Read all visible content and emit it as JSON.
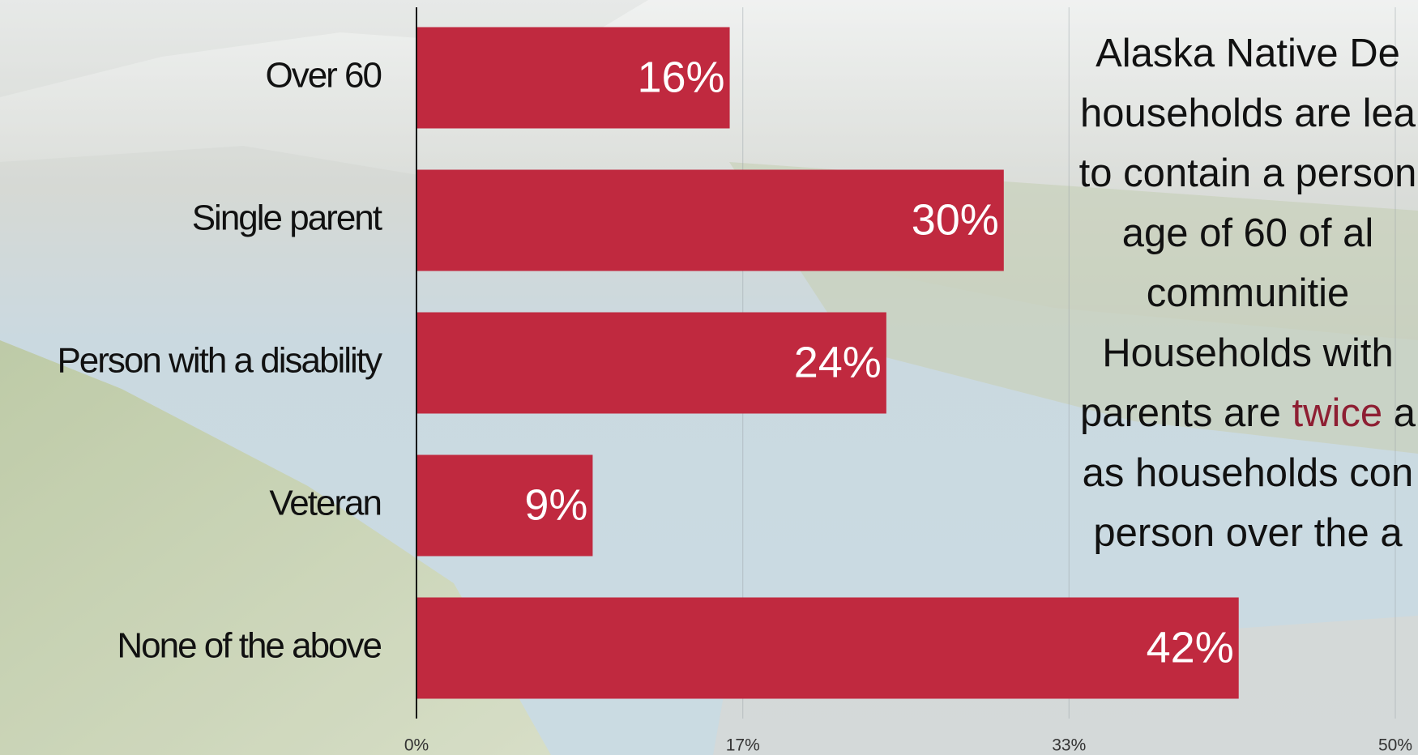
{
  "chart_data": {
    "type": "hbar",
    "categories": [
      "Over 60",
      "Single parent",
      "Person with a disability",
      "Veteran",
      "None of the above"
    ],
    "values": [
      16,
      30,
      24,
      9,
      42
    ],
    "value_labels": [
      "16%",
      "30%",
      "24%",
      "9%",
      "42%"
    ],
    "color": "#c0293f",
    "xlim": [
      0,
      50
    ],
    "xticks": [
      {
        "value": 0,
        "label": "0%"
      },
      {
        "value": 16.67,
        "label": "17%"
      },
      {
        "value": 33.33,
        "label": "33%"
      },
      {
        "value": 50,
        "label": "50%"
      }
    ],
    "grid": true,
    "annotation": [
      "Alaska Native De",
      "households are lea",
      "to contain a person",
      "age of 60 of al",
      "communitie",
      "Households with",
      {
        "before": "parents are ",
        "highlight": "twice",
        "after": " a"
      },
      "as households con",
      "person over the a"
    ],
    "highlight_color": "#8e1f33"
  }
}
